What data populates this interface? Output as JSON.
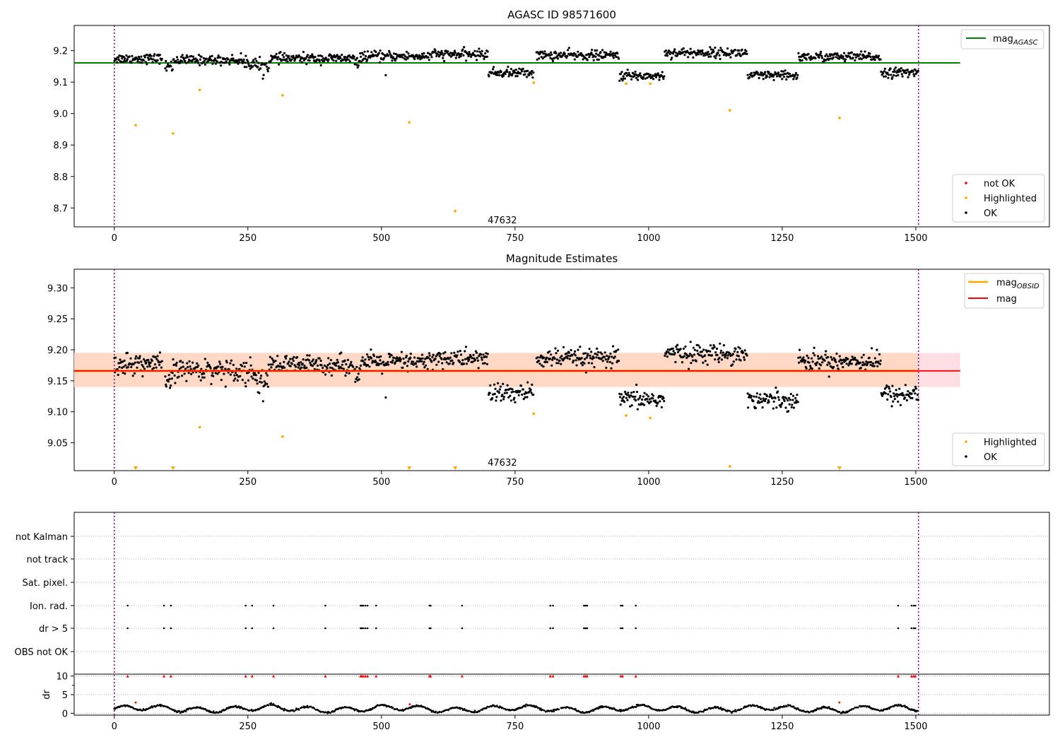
{
  "chart_data": [
    {
      "type": "scatter",
      "title": "AGASC ID 98571600",
      "xlim": [
        -75,
        1750
      ],
      "ylim": [
        8.64,
        9.28
      ],
      "xticks": [
        0,
        250,
        500,
        750,
        1000,
        1250,
        1500
      ],
      "yticks": [
        8.7,
        8.8,
        8.9,
        9.0,
        9.1,
        9.2
      ],
      "ytick_labels": [
        "8.7",
        "8.8",
        "8.9",
        "9.0",
        "9.1",
        "9.2"
      ],
      "vlines": [
        0,
        1505
      ],
      "hline": {
        "y": 9.161,
        "xmax": 1583,
        "color": "#008000"
      },
      "annotation": {
        "text": "47632",
        "x": 750,
        "y": 8.66
      },
      "series_highlighted": {
        "name": "Highlighted",
        "color": "#ffa500",
        "x": [
          40,
          110,
          160,
          315,
          552,
          638,
          785,
          958,
          1003,
          1152,
          1357
        ],
        "y": [
          8.963,
          8.937,
          9.075,
          9.058,
          8.972,
          8.69,
          9.098,
          9.095,
          9.095,
          9.01,
          8.986
        ]
      },
      "segments": [
        {
          "x": [
            0,
            90
          ],
          "y": 9.175,
          "s": 0.01
        },
        {
          "x": [
            95,
            110
          ],
          "y": 9.15,
          "s": 0.012
        },
        {
          "x": [
            110,
            240
          ],
          "y": 9.17,
          "s": 0.01
        },
        {
          "x": [
            240,
            265
          ],
          "y": 9.162,
          "s": 0.015
        },
        {
          "x": [
            265,
            290
          ],
          "y": 9.15,
          "s": 0.015
        },
        {
          "x": [
            290,
            450
          ],
          "y": 9.175,
          "s": 0.01
        },
        {
          "x": [
            450,
            460
          ],
          "y": 9.16,
          "s": 0.01
        },
        {
          "x": [
            460,
            590
          ],
          "y": 9.182,
          "s": 0.01
        },
        {
          "x": [
            590,
            700
          ],
          "y": 9.188,
          "s": 0.01
        },
        {
          "x": [
            700,
            785
          ],
          "y": 9.13,
          "s": 0.01
        },
        {
          "x": [
            790,
            945
          ],
          "y": 9.185,
          "s": 0.01
        },
        {
          "x": [
            945,
            1030
          ],
          "y": 9.12,
          "s": 0.01
        },
        {
          "x": [
            1030,
            1185
          ],
          "y": 9.193,
          "s": 0.01
        },
        {
          "x": [
            1185,
            1280
          ],
          "y": 9.12,
          "s": 0.01
        },
        {
          "x": [
            1280,
            1435
          ],
          "y": 9.18,
          "s": 0.01
        },
        {
          "x": [
            1435,
            1505
          ],
          "y": 9.13,
          "s": 0.01
        }
      ],
      "outliers": [
        {
          "x": 508,
          "y": 9.122
        }
      ],
      "legend_upper": [
        {
          "label": "mag",
          "sub": "AGASC",
          "color": "#008000",
          "kind": "line"
        }
      ],
      "legend_lower": [
        {
          "label": "not OK",
          "color": "#ff0000",
          "kind": "dot"
        },
        {
          "label": "Highlighted",
          "color": "#ffa500",
          "kind": "dot"
        },
        {
          "label": "OK",
          "color": "#000000",
          "kind": "dot"
        }
      ]
    },
    {
      "type": "scatter",
      "title": "Magnitude Estimates",
      "xlim": [
        -75,
        1750
      ],
      "ylim": [
        9.005,
        9.33
      ],
      "xticks": [
        0,
        250,
        500,
        750,
        1000,
        1250,
        1500
      ],
      "yticks": [
        9.05,
        9.1,
        9.15,
        9.2,
        9.25,
        9.3
      ],
      "ytick_labels": [
        "9.05",
        "9.10",
        "9.15",
        "9.20",
        "9.25",
        "9.30"
      ],
      "vlines": [
        0,
        1505
      ],
      "band_pink": {
        "x": [
          -75,
          1583
        ],
        "y": [
          9.14,
          9.195
        ],
        "color": "#ffdfe3"
      },
      "band_orange": {
        "x": [
          -75,
          1505
        ],
        "y": [
          9.14,
          9.195
        ],
        "color": "#ffd8c6"
      },
      "hline_obsid": {
        "y": 9.166,
        "xmax": 1505,
        "color": "#ffa500"
      },
      "hline_mag": {
        "y": 9.166,
        "xmax": 1583,
        "color": "#ff0000"
      },
      "annotation": {
        "text": "47632",
        "x": 750,
        "y": 9.015
      },
      "series_highlighted": {
        "name": "Highlighted",
        "color": "#ffa500",
        "x": [
          160,
          315,
          785,
          958,
          1003,
          1152
        ],
        "y": [
          9.075,
          9.06,
          9.097,
          9.094,
          9.09,
          9.012
        ]
      },
      "clipped_markers": {
        "color": "#ffa500",
        "x": [
          40,
          110,
          552,
          638,
          1357
        ]
      },
      "segments": [
        {
          "x": [
            0,
            90
          ],
          "y": 9.177,
          "s": 0.011
        },
        {
          "x": [
            95,
            110
          ],
          "y": 9.148,
          "s": 0.012
        },
        {
          "x": [
            110,
            240
          ],
          "y": 9.168,
          "s": 0.011
        },
        {
          "x": [
            240,
            265
          ],
          "y": 9.165,
          "s": 0.016
        },
        {
          "x": [
            265,
            290
          ],
          "y": 9.15,
          "s": 0.015
        },
        {
          "x": [
            290,
            450
          ],
          "y": 9.176,
          "s": 0.01
        },
        {
          "x": [
            450,
            460
          ],
          "y": 9.16,
          "s": 0.01
        },
        {
          "x": [
            460,
            590
          ],
          "y": 9.18,
          "s": 0.01
        },
        {
          "x": [
            590,
            700
          ],
          "y": 9.186,
          "s": 0.01
        },
        {
          "x": [
            700,
            785
          ],
          "y": 9.13,
          "s": 0.011
        },
        {
          "x": [
            790,
            945
          ],
          "y": 9.186,
          "s": 0.01
        },
        {
          "x": [
            945,
            1030
          ],
          "y": 9.12,
          "s": 0.01
        },
        {
          "x": [
            1030,
            1185
          ],
          "y": 9.194,
          "s": 0.01
        },
        {
          "x": [
            1185,
            1280
          ],
          "y": 9.12,
          "s": 0.01
        },
        {
          "x": [
            1280,
            1435
          ],
          "y": 9.182,
          "s": 0.01
        },
        {
          "x": [
            1435,
            1505
          ],
          "y": 9.128,
          "s": 0.011
        }
      ],
      "outliers": [
        {
          "x": 508,
          "y": 9.123
        }
      ],
      "legend_upper": [
        {
          "label": "mag",
          "sub": "OBSID",
          "color": "#ffa500",
          "kind": "line"
        },
        {
          "label": "mag",
          "sub": "",
          "color": "#ff0000",
          "kind": "line"
        }
      ],
      "legend_lower": [
        {
          "label": "Highlighted",
          "color": "#ffa500",
          "kind": "dot"
        },
        {
          "label": "OK",
          "color": "#000000",
          "kind": "dot"
        }
      ]
    },
    {
      "type": "scatter",
      "title": "",
      "xlim": [
        -75,
        1750
      ],
      "xticks": [
        0,
        250,
        500,
        750,
        1000,
        1250,
        1500
      ],
      "vlines": [
        0,
        1505
      ],
      "flag_rows": [
        "not Kalman",
        "not track",
        "Sat. pixel.",
        "Ion. rad.",
        "dr > 5",
        "OBS not OK"
      ],
      "flag_events_x": [
        25,
        93,
        106,
        246,
        258,
        298,
        395,
        461,
        463,
        466,
        470,
        474,
        490,
        590,
        592,
        651,
        816,
        821,
        879,
        882,
        885,
        948,
        951,
        976,
        1467,
        1492,
        1496,
        1499
      ],
      "dr_ylim": [
        -0.5,
        10.5
      ],
      "dr_yticks": [
        0,
        5,
        10
      ],
      "dr_ylabel": "dr",
      "dr_red_markers_y": 10,
      "dr_outliers": [
        {
          "x": 40,
          "y": 2.9
        },
        {
          "x": 1357,
          "y": 2.9
        },
        {
          "x": 553,
          "y": 2.4
        }
      ]
    }
  ]
}
